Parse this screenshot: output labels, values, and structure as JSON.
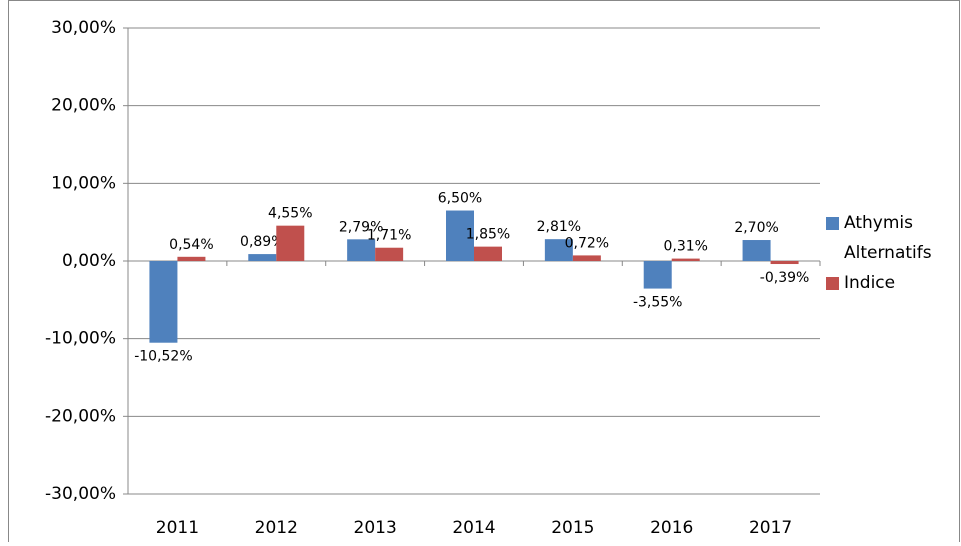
{
  "chart_data": {
    "type": "bar",
    "categories": [
      "2011",
      "2012",
      "2013",
      "2014",
      "2015",
      "2016",
      "2017"
    ],
    "series": [
      {
        "name": "Athymis Alternatifs",
        "color": "#4f81bd",
        "values": [
          -10.52,
          0.89,
          2.79,
          6.5,
          2.81,
          -3.55,
          2.7
        ],
        "value_labels": [
          "-10,52%",
          "0,89%",
          "2,79%",
          "6,50%",
          "2,81%",
          "-3,55%",
          "2,70%"
        ]
      },
      {
        "name": "Indice",
        "color": "#c0504d",
        "values": [
          0.54,
          4.55,
          1.71,
          1.85,
          0.72,
          0.31,
          -0.39
        ],
        "value_labels": [
          "0,54%",
          "4,55%",
          "1,71%",
          "1,85%",
          "0,72%",
          "0,31%",
          "-0,39%"
        ]
      }
    ],
    "ylim": [
      -30,
      30
    ],
    "yticks": [
      {
        "value": -30,
        "label": "-30,00%"
      },
      {
        "value": -20,
        "label": "-20,00%"
      },
      {
        "value": -10,
        "label": "-10,00%"
      },
      {
        "value": 0,
        "label": "0,00%"
      },
      {
        "value": 10,
        "label": "10,00%"
      },
      {
        "value": 20,
        "label": "20,00%"
      },
      {
        "value": 30,
        "label": "30,00%"
      }
    ],
    "grid": true
  }
}
